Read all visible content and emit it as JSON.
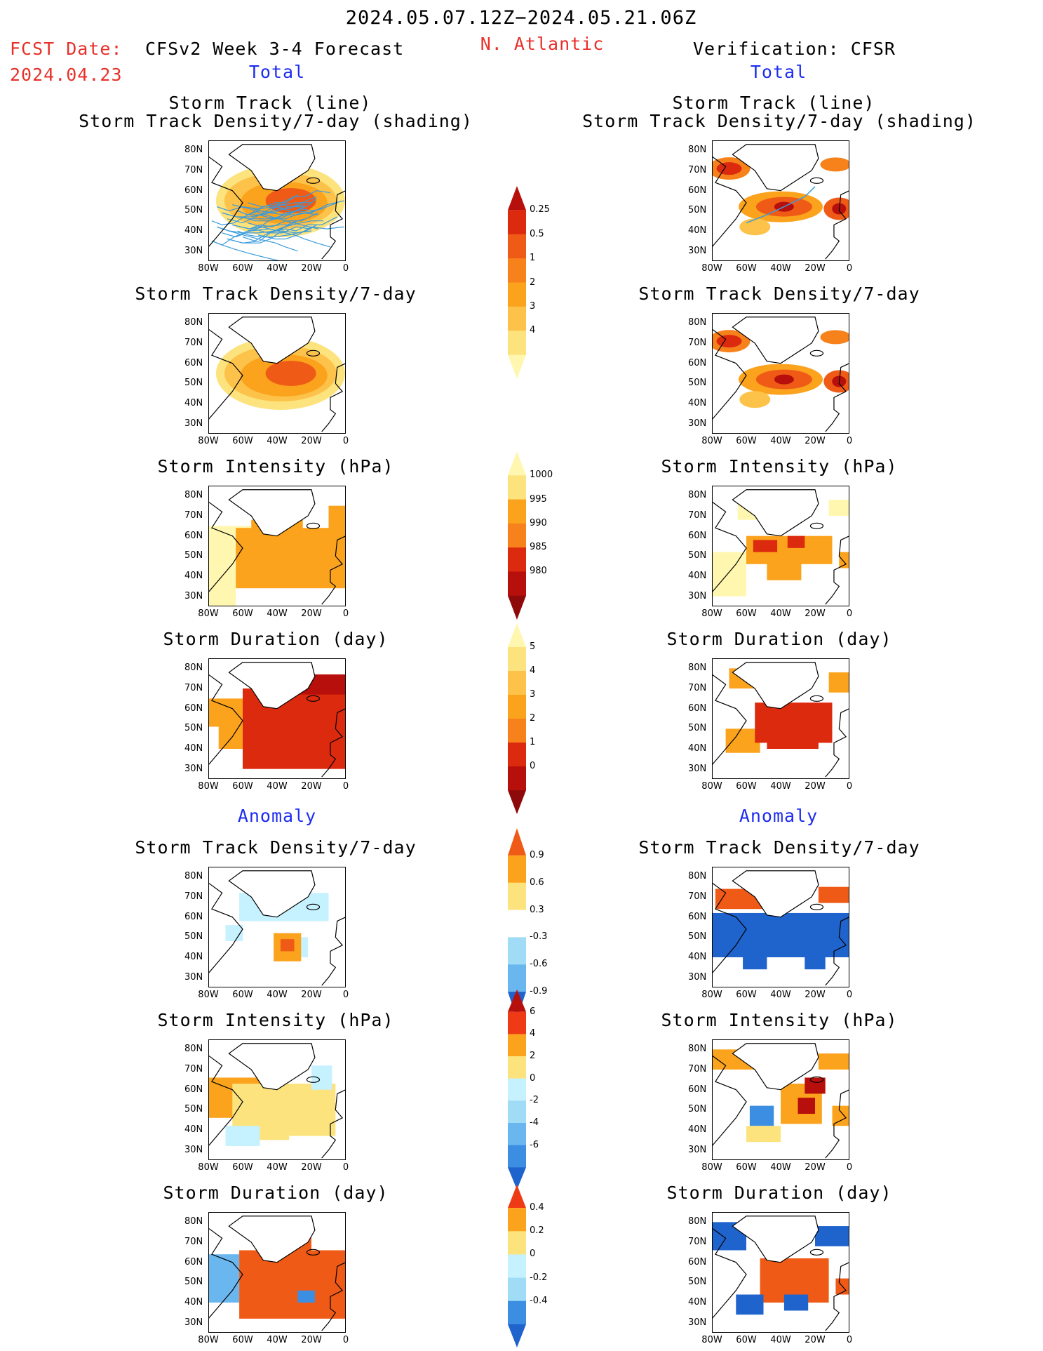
{
  "header": {
    "period": "2024.05.07.12Z−2024.05.21.06Z",
    "fcst_label": "FCST Date:",
    "fcst_date": "2024.04.23",
    "model_title": "CFSv2 Week 3-4 Forecast",
    "region": "N. Atlantic",
    "verif_title": "Verification: CFSR"
  },
  "sections": {
    "total_left": "Total",
    "total_right": "Total",
    "anomaly_left": "Anomaly",
    "anomaly_right": "Anomaly"
  },
  "panel_titles": {
    "track_line": "Storm Track (line)",
    "track_shading": "Storm Track Density/7-day (shading)",
    "density": "Storm Track Density/7-day",
    "intensity": "Storm Intensity (hPa)",
    "duration": "Storm Duration (day)"
  },
  "axes": {
    "lat_ticks": [
      "80N",
      "70N",
      "60N",
      "50N",
      "40N",
      "30N"
    ],
    "lon_ticks": [
      "80W",
      "60W",
      "40W",
      "20W",
      "0"
    ]
  },
  "colors": {
    "track_line": "#3a9bdc",
    "warm": [
      "#fff7b0",
      "#fde37d",
      "#fdc24a",
      "#fba31c",
      "#f7821b",
      "#ef5a16",
      "#dc2a0f",
      "#b70f0b",
      "#8e0a0a"
    ],
    "cool": [
      "#c6f1ff",
      "#a0dcf6",
      "#6ab7f0",
      "#3c8ee3",
      "#1f63cc"
    ]
  },
  "chart_data": [
    {
      "id": "total_density_colorbar",
      "type": "heatmap",
      "title": "Storm Track Density/7-day",
      "levels": [
        "0.25",
        "0.5",
        "1",
        "2",
        "3",
        "4"
      ],
      "colors": [
        "#fff7b0",
        "#fde37d",
        "#fdc24a",
        "#fba31c",
        "#f7821b",
        "#ef5a16",
        "#dc2a0f",
        "#b70f0b"
      ]
    },
    {
      "id": "total_intensity_colorbar",
      "type": "heatmap",
      "title": "Storm Intensity (hPa)",
      "levels": [
        "1000",
        "995",
        "990",
        "985",
        "980"
      ],
      "colors": [
        "#fff7b0",
        "#fde37d",
        "#fba31c",
        "#f7821b",
        "#dc2a0f",
        "#b70f0b",
        "#8e0a0a"
      ]
    },
    {
      "id": "total_duration_colorbar",
      "type": "heatmap",
      "title": "Storm Duration (day)",
      "levels": [
        "5",
        "4",
        "3",
        "2",
        "1",
        "0"
      ],
      "colors": [
        "#fff7b0",
        "#fde37d",
        "#fdc24a",
        "#fba31c",
        "#f7821b",
        "#dc2a0f",
        "#b70f0b",
        "#8e0a0a"
      ]
    },
    {
      "id": "anom_density_colorbar",
      "type": "heatmap",
      "title": "Storm Track Density/7-day",
      "levels": [
        "0.9",
        "0.6",
        "0.3",
        "-0.3",
        "-0.6",
        "-0.9"
      ],
      "colors": [
        "#ef5a16",
        "#fba31c",
        "#fde37d",
        "#ffffff",
        "#a0dcf6",
        "#6ab7f0",
        "#1f63cc"
      ]
    },
    {
      "id": "anom_intensity_colorbar",
      "type": "heatmap",
      "title": "Storm Intensity (hPa)",
      "levels": [
        "6",
        "4",
        "2",
        "0",
        "-2",
        "-4",
        "-6"
      ],
      "colors": [
        "#b70f0b",
        "#ef3a16",
        "#fba31c",
        "#fde37d",
        "#c6f1ff",
        "#a0dcf6",
        "#6ab7f0",
        "#3c8ee3",
        "#1f63cc"
      ]
    },
    {
      "id": "anom_duration_colorbar",
      "type": "heatmap",
      "title": "Storm Duration (day)",
      "levels": [
        "0.4",
        "0.2",
        "0",
        "-0.2",
        "-0.4"
      ],
      "colors": [
        "#ef3a16",
        "#fba31c",
        "#fde37d",
        "#c6f1ff",
        "#a0dcf6",
        "#3c8ee3",
        "#1f63cc"
      ]
    }
  ]
}
